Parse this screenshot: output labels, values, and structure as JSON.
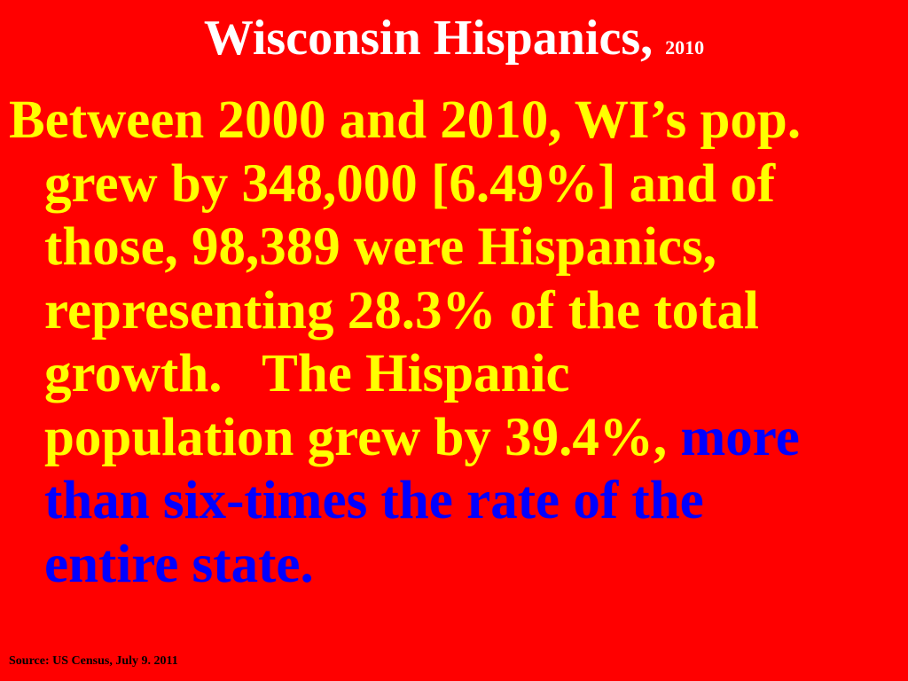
{
  "header": {
    "title": "Wisconsin Hispanics,",
    "year": "2010"
  },
  "body": {
    "lines": [
      [
        {
          "text": "Between 2000 and 2010, WI’s pop.",
          "color": "#ffff00"
        }
      ],
      [
        {
          "text": "grew by 348,000 [6.49%] and of",
          "color": "#ffff00"
        }
      ],
      [
        {
          "text": "those, 98,389 were Hispanics,",
          "color": "#ffff00"
        }
      ],
      [
        {
          "text": "representing 28.3% of the total",
          "color": "#ffff00"
        }
      ],
      [
        {
          "text": "growth.   The Hispanic",
          "color": "#ffff00"
        }
      ],
      [
        {
          "text": "population grew by 39.4%, ",
          "color": "#ffff00"
        },
        {
          "text": "more",
          "color": "#0000ff"
        }
      ],
      [
        {
          "text": "than six-times the rate of the",
          "color": "#0000ff"
        }
      ],
      [
        {
          "text": "entire state.",
          "color": "#0000ff"
        }
      ]
    ]
  },
  "footer": {
    "source": "Source: US Census, July 9. 2011"
  }
}
